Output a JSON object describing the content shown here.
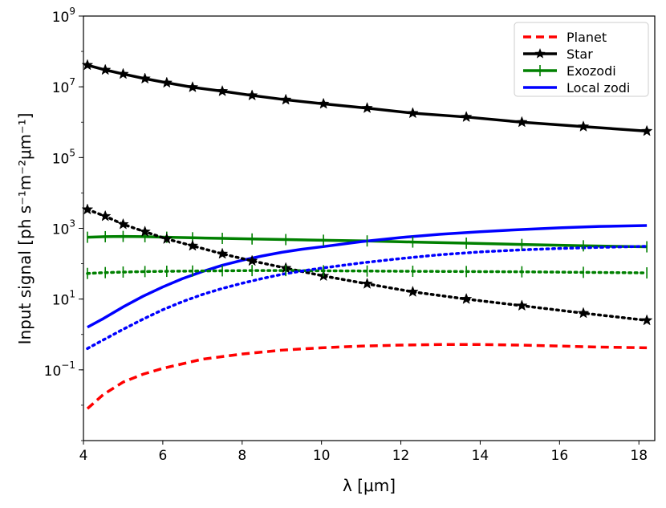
{
  "chart_data": {
    "type": "line",
    "xlabel": "λ [μm]",
    "ylabel": "Input signal [ph s⁻¹m⁻²μm⁻¹]",
    "xlim": [
      4.0,
      18.4
    ],
    "ylim_log10": [
      -3.0,
      9.0
    ],
    "xticks": [
      4,
      6,
      8,
      10,
      12,
      14,
      16,
      18
    ],
    "xtick_labels": [
      "4",
      "6",
      "8",
      "10",
      "12",
      "14",
      "16",
      "18"
    ],
    "yticks_log10": [
      -1,
      1,
      3,
      5,
      7,
      9
    ],
    "ytick_labels": [
      {
        "base": "10",
        "exp": "−1"
      },
      {
        "base": "10",
        "exp": "1"
      },
      {
        "base": "10",
        "exp": "3"
      },
      {
        "base": "10",
        "exp": "5"
      },
      {
        "base": "10",
        "exp": "7"
      },
      {
        "base": "10",
        "exp": "9"
      }
    ],
    "legend": {
      "location": "upper right"
    },
    "colors": {
      "planet": "#ff0000",
      "star": "#000000",
      "exozodi": "#008000",
      "local_zodi": "#0000ff"
    },
    "series": [
      {
        "name": "Planet",
        "legend_label": "Planet",
        "color": "#ff0000",
        "dash": "dashed",
        "marker": "none",
        "in_legend": true,
        "x": [
          4.1,
          4.5,
          5.0,
          5.5,
          6.0,
          7.0,
          8.0,
          9.0,
          10.0,
          11.0,
          12.0,
          13.0,
          14.0,
          15.0,
          16.0,
          17.0,
          18.2
        ],
        "values": [
          0.008,
          0.02,
          0.045,
          0.075,
          0.11,
          0.2,
          0.28,
          0.36,
          0.42,
          0.47,
          0.5,
          0.52,
          0.52,
          0.5,
          0.47,
          0.44,
          0.42
        ]
      },
      {
        "name": "Star",
        "legend_label": "Star",
        "color": "#000000",
        "dash": "solid",
        "marker": "star",
        "in_legend": true,
        "x": [
          4.1,
          4.55,
          5.0,
          5.55,
          6.1,
          6.75,
          7.5,
          8.25,
          9.1,
          10.05,
          11.15,
          12.3,
          13.65,
          15.05,
          16.6,
          18.2
        ],
        "values": [
          41000000,
          30000000,
          23000000,
          17000000,
          13000000,
          9700000,
          7500000,
          5700000,
          4300000,
          3300000,
          2500000,
          1800000,
          1400000,
          1000000,
          750000,
          560000
        ]
      },
      {
        "name": "Exozodi",
        "legend_label": "Exozodi",
        "color": "#008000",
        "dash": "solid",
        "marker": "vline",
        "in_legend": true,
        "x": [
          4.1,
          4.55,
          5.0,
          5.55,
          6.1,
          6.75,
          7.5,
          8.25,
          9.1,
          10.05,
          11.15,
          12.3,
          13.65,
          15.05,
          16.6,
          18.2
        ],
        "values": [
          560,
          580,
          590,
          580,
          560,
          540,
          520,
          500,
          480,
          460,
          440,
          410,
          380,
          350,
          320,
          300
        ]
      },
      {
        "name": "Local zodi",
        "legend_label": "Local zodi",
        "color": "#0000ff",
        "dash": "solid",
        "marker": "none",
        "in_legend": true,
        "x": [
          4.1,
          4.5,
          5.0,
          5.5,
          6.0,
          6.5,
          7.0,
          7.5,
          8.0,
          8.5,
          9.0,
          9.5,
          10.0,
          11.0,
          12.0,
          13.0,
          14.0,
          15.0,
          16.0,
          17.0,
          18.2
        ],
        "values": [
          1.6,
          2.8,
          6.0,
          12,
          22,
          38,
          60,
          90,
          125,
          165,
          210,
          255,
          300,
          420,
          550,
          680,
          800,
          920,
          1030,
          1130,
          1200
        ]
      },
      {
        "name": "Star (dotted)",
        "legend_label": "",
        "color": "#000000",
        "dash": "dotted",
        "marker": "star",
        "in_legend": false,
        "x": [
          4.1,
          4.55,
          5.0,
          5.55,
          6.1,
          6.75,
          7.5,
          8.25,
          9.1,
          10.05,
          11.15,
          12.3,
          13.65,
          15.05,
          16.6,
          18.2
        ],
        "values": [
          3400,
          2200,
          1300,
          800,
          500,
          320,
          190,
          120,
          75,
          45,
          27,
          16,
          10,
          6.5,
          4.0,
          2.5
        ]
      },
      {
        "name": "Exozodi (dotted)",
        "legend_label": "",
        "color": "#008000",
        "dash": "dotted",
        "marker": "vline",
        "in_legend": false,
        "x": [
          4.1,
          4.55,
          5.0,
          5.55,
          6.1,
          6.75,
          7.5,
          8.25,
          9.1,
          10.05,
          11.15,
          12.3,
          13.65,
          15.05,
          16.6,
          18.2
        ],
        "values": [
          53,
          56,
          58,
          60,
          61,
          62,
          63,
          64,
          64,
          63,
          62,
          61,
          60,
          59,
          57,
          55
        ]
      },
      {
        "name": "Local zodi (dotted)",
        "legend_label": "",
        "color": "#0000ff",
        "dash": "dotted",
        "marker": "none",
        "in_legend": false,
        "x": [
          4.1,
          4.5,
          5.0,
          5.5,
          6.0,
          6.5,
          7.0,
          7.5,
          8.0,
          8.5,
          9.0,
          9.5,
          10.0,
          11.0,
          12.0,
          13.0,
          14.0,
          15.0,
          16.0,
          17.0,
          18.2
        ],
        "values": [
          0.4,
          0.7,
          1.4,
          2.7,
          5.0,
          8.5,
          13.5,
          20,
          28,
          38,
          50,
          62,
          75,
          105,
          140,
          180,
          215,
          245,
          270,
          290,
          310
        ]
      }
    ]
  }
}
